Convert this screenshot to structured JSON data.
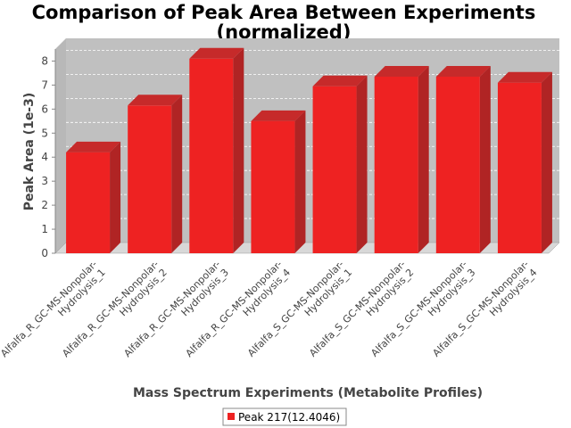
{
  "chart_data": {
    "type": "bar",
    "title": "Comparison of Peak Area Between Experiments",
    "subtitle": "(normalized)",
    "xlabel": "Mass Spectrum Experiments (Metabolite Profiles)",
    "ylabel": "Peak Area (1e-3)",
    "ylim": [
      0,
      8.5
    ],
    "yticks": [
      "0",
      "1",
      "2",
      "3",
      "4",
      "5",
      "6",
      "7",
      "8"
    ],
    "categories": [
      [
        "Alfalfa_R_GC-MS-Nonpolar-",
        "Hydrolysis_1"
      ],
      [
        "Alfalfa_R_GC-MS-Nonpolar-",
        "Hydrolysis_2"
      ],
      [
        "Alfalfa_R_GC-MS-Nonpolar-",
        "Hydrolysis_3"
      ],
      [
        "Alfalfa_R_GC-MS-Nonpolar-",
        "Hydrolysis_4"
      ],
      [
        "Alfalfa_S_GC-MS-Nonpolar-",
        "Hydrolysis_1"
      ],
      [
        "Alfalfa_S_GC-MS-Nonpolar-",
        "Hydrolysis_2"
      ],
      [
        "Alfalfa_S_GC-MS-Nonpolar-",
        "Hydrolysis_3"
      ],
      [
        "Alfalfa_S_GC-MS-Nonpolar-",
        "Hydrolysis_4"
      ]
    ],
    "series": [
      {
        "name": "Peak 217(12.4046)",
        "color": "#ee2222",
        "values": [
          4.2,
          6.15,
          8.1,
          5.5,
          6.95,
          7.35,
          7.35,
          7.1
        ]
      }
    ],
    "grid": true,
    "legend": "bottom-center",
    "style": "3d"
  }
}
